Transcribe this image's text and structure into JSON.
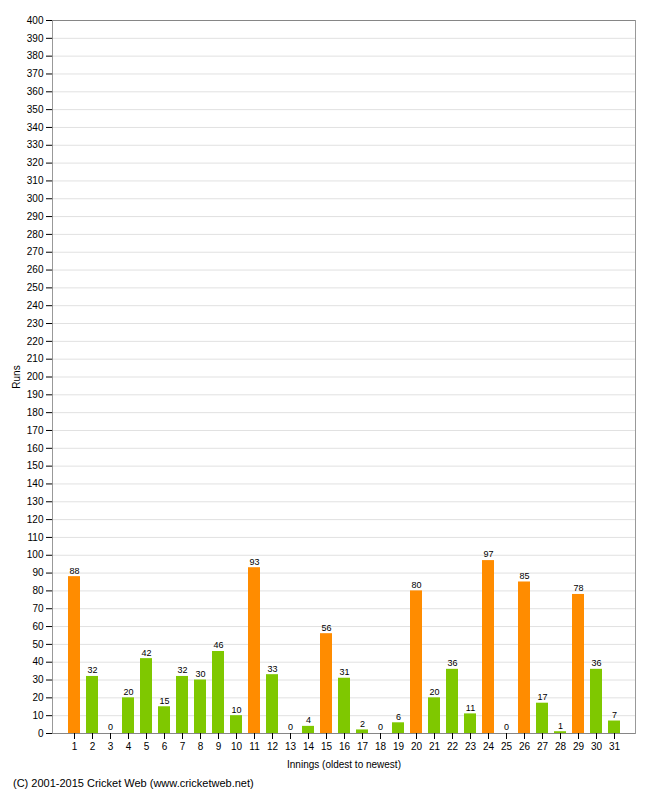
{
  "chart_data": {
    "type": "bar",
    "xlabel": "Innings (oldest to newest)",
    "ylabel": "Runs",
    "categories": [
      "1",
      "2",
      "3",
      "4",
      "5",
      "6",
      "7",
      "8",
      "9",
      "10",
      "11",
      "12",
      "13",
      "14",
      "15",
      "16",
      "17",
      "18",
      "19",
      "20",
      "21",
      "22",
      "23",
      "24",
      "25",
      "26",
      "27",
      "28",
      "29",
      "30",
      "31"
    ],
    "values": [
      88,
      32,
      0,
      20,
      42,
      15,
      32,
      30,
      46,
      10,
      93,
      33,
      0,
      4,
      56,
      31,
      2,
      0,
      6,
      80,
      20,
      36,
      11,
      97,
      0,
      85,
      17,
      1,
      78,
      36,
      7
    ],
    "colors": [
      "#ff8c00",
      "#7fc800",
      "#7fc800",
      "#7fc800",
      "#7fc800",
      "#7fc800",
      "#7fc800",
      "#7fc800",
      "#7fc800",
      "#7fc800",
      "#ff8c00",
      "#7fc800",
      "#7fc800",
      "#7fc800",
      "#ff8c00",
      "#7fc800",
      "#7fc800",
      "#7fc800",
      "#7fc800",
      "#ff8c00",
      "#7fc800",
      "#7fc800",
      "#7fc800",
      "#ff8c00",
      "#7fc800",
      "#ff8c00",
      "#7fc800",
      "#7fc800",
      "#ff8c00",
      "#7fc800",
      "#7fc800"
    ],
    "ylim": [
      0,
      400
    ],
    "yticks": [
      0,
      10,
      20,
      30,
      40,
      50,
      60,
      70,
      80,
      90,
      100,
      110,
      120,
      130,
      140,
      150,
      160,
      170,
      180,
      190,
      200,
      210,
      220,
      230,
      240,
      250,
      260,
      270,
      280,
      290,
      300,
      310,
      320,
      330,
      340,
      350,
      360,
      370,
      380,
      390,
      400
    ],
    "grid": true,
    "data_labels": true,
    "footer": "(C) 2001-2015 Cricket Web (www.cricketweb.net)"
  }
}
